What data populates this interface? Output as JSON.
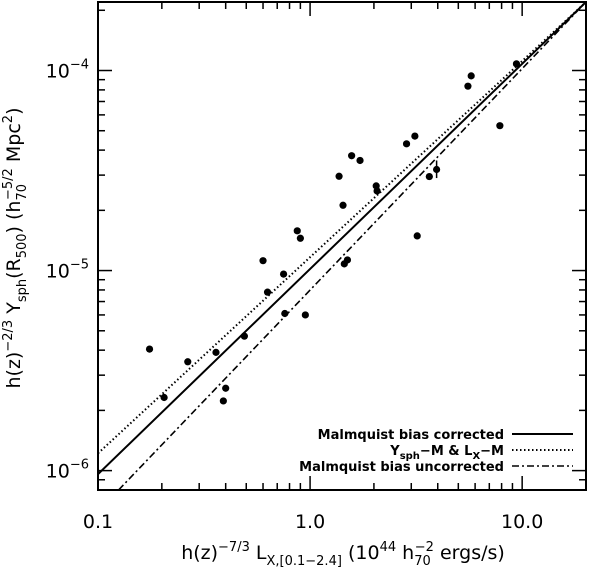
{
  "chart_data": {
    "type": "scatter",
    "title": "",
    "x_scale": "log",
    "y_scale": "log",
    "xlim": [
      0.1,
      20
    ],
    "ylim": [
      8e-07,
      0.00022
    ],
    "x_ticks": [
      {
        "value": 0.1,
        "label": "0.1"
      },
      {
        "value": 1.0,
        "label": "1.0"
      },
      {
        "value": 10.0,
        "label": "10.0"
      }
    ],
    "y_ticks": [
      {
        "value": 1e-06,
        "mant": "10",
        "exp": "−6"
      },
      {
        "value": 1e-05,
        "mant": "10",
        "exp": "−5"
      },
      {
        "value": 0.0001,
        "mant": "10",
        "exp": "−4"
      }
    ],
    "xlabel": {
      "pre": "h(z)",
      "pre_sup": "−7/3",
      "mid": " L",
      "mid_sub": "X,[0.1−2.4]",
      "post": "  (10",
      "post_sup": "44",
      "post2": " h",
      "post2_sub": "70",
      "post2_sup": "−2",
      "post3": " ergs/s)"
    },
    "ylabel": {
      "pre": "h(z)",
      "pre_sup": "−2/3",
      "mid": "  Y",
      "mid_sub": "sph",
      "mid2": "(R",
      "mid2_sub": "500",
      "post": ")  (h",
      "post_sub": "70",
      "post_sup": "−5/2",
      "post2": " Mpc",
      "post2_sup": "2",
      "post3": ")"
    },
    "legend_position": "bottom-right",
    "legend": [
      {
        "label": "Malmquist bias corrected",
        "style": "solid"
      },
      {
        "pre": "Y",
        "sub1": "sph",
        "mid": "−M  &  L",
        "sub2": "X",
        "post": "−M",
        "style": "dotted"
      },
      {
        "label": "Malmquist bias uncorrected",
        "style": "dashdot"
      }
    ],
    "points": [
      {
        "x": 0.175,
        "y": 4.05e-06
      },
      {
        "x": 0.205,
        "y": 2.32e-06
      },
      {
        "x": 0.265,
        "y": 3.5e-06
      },
      {
        "x": 0.36,
        "y": 3.9e-06
      },
      {
        "x": 0.39,
        "y": 2.23e-06
      },
      {
        "x": 0.4,
        "y": 2.58e-06
      },
      {
        "x": 0.49,
        "y": 4.7e-06
      },
      {
        "x": 0.6,
        "y": 1.12e-05
      },
      {
        "x": 0.63,
        "y": 7.8e-06
      },
      {
        "x": 0.75,
        "y": 9.6e-06
      },
      {
        "x": 0.76,
        "y": 6.1e-06
      },
      {
        "x": 0.87,
        "y": 1.58e-05
      },
      {
        "x": 0.9,
        "y": 1.45e-05
      },
      {
        "x": 0.95,
        "y": 6e-06
      },
      {
        "x": 1.37,
        "y": 2.96e-05
      },
      {
        "x": 1.43,
        "y": 2.12e-05
      },
      {
        "x": 1.45,
        "y": 1.08e-05
      },
      {
        "x": 1.5,
        "y": 1.13e-05
      },
      {
        "x": 1.57,
        "y": 3.75e-05
      },
      {
        "x": 1.72,
        "y": 3.55e-05
      },
      {
        "x": 2.05,
        "y": 2.65e-05
      },
      {
        "x": 2.07,
        "y": 2.5e-05
      },
      {
        "x": 2.85,
        "y": 4.3e-05
      },
      {
        "x": 3.12,
        "y": 4.7e-05
      },
      {
        "x": 3.2,
        "y": 1.49e-05
      },
      {
        "x": 3.65,
        "y": 2.95e-05
      },
      {
        "x": 3.95,
        "y": 3.2e-05,
        "err_low": 2.9e-05,
        "err_high": 3.55e-05
      },
      {
        "x": 5.55,
        "y": 8.35e-05
      },
      {
        "x": 5.75,
        "y": 9.4e-05
      },
      {
        "x": 7.85,
        "y": 5.3e-05
      },
      {
        "x": 9.4,
        "y": 0.000108
      }
    ],
    "lines": [
      {
        "name": "Malmquist bias corrected",
        "style": "solid",
        "x": [
          0.1,
          20
        ],
        "y": [
          9.6e-07,
          0.00022
        ]
      },
      {
        "name": "Ysph-M & LX-M",
        "style": "dotted",
        "x": [
          0.1,
          20
        ],
        "y": [
          1.22e-06,
          0.00022
        ]
      },
      {
        "name": "Malmquist bias uncorrected",
        "style": "dashdot",
        "x": [
          0.125,
          20
        ],
        "y": [
          8e-07,
          0.00022
        ]
      }
    ]
  }
}
